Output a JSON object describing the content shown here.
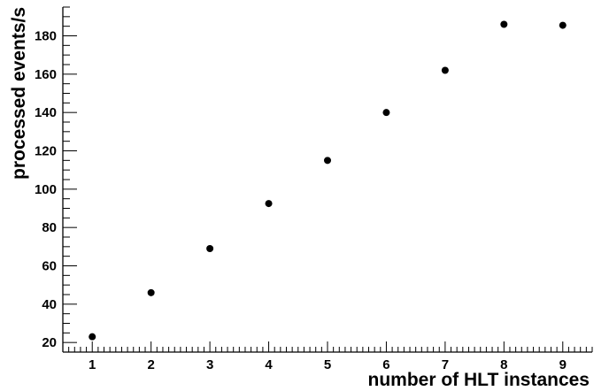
{
  "chart_data": {
    "type": "scatter",
    "title": "",
    "xlabel": "number of HLT instances",
    "ylabel": "processed events/s",
    "xlim": [
      0.5,
      9.5
    ],
    "ylim": [
      15,
      195
    ],
    "x_ticks": [
      1,
      2,
      3,
      4,
      5,
      6,
      7,
      8,
      9
    ],
    "y_ticks": [
      20,
      40,
      60,
      80,
      100,
      120,
      140,
      160,
      180
    ],
    "x_minor_step": 0.1,
    "y_minor_step": 5,
    "grid": false,
    "legend": "none",
    "marker_color": "#000000",
    "series": [
      {
        "x": [
          1,
          2,
          3,
          4,
          5,
          6,
          7,
          8,
          9
        ],
        "y": [
          23,
          46,
          69,
          92.5,
          115,
          140,
          162,
          186,
          185.5
        ]
      }
    ]
  }
}
